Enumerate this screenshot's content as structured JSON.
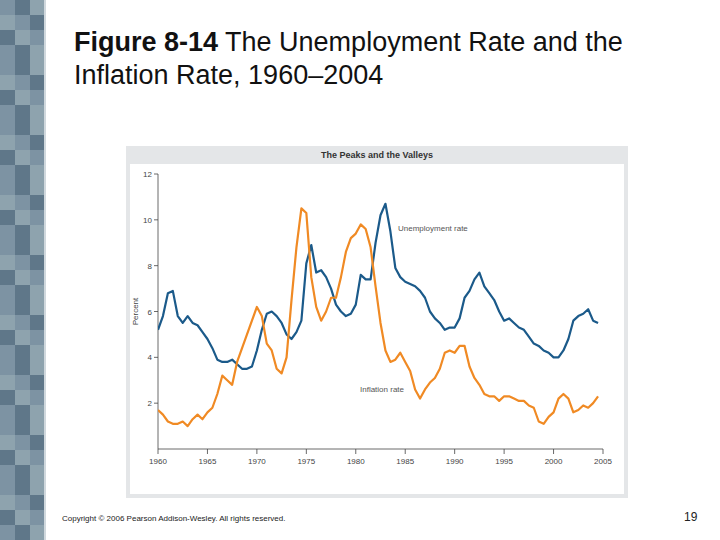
{
  "slide": {
    "figure_label": "Figure 8-14",
    "title": "The Unemployment Rate and the Inflation Rate, 1960–2004",
    "footer": "Copyright © 2006 Pearson Addison-Wesley. All rights reserved.",
    "page": "19"
  },
  "chart_data": {
    "type": "line",
    "title": "The Peaks and the Valleys",
    "ylabel": "Percent",
    "x": [
      1960,
      1960.5,
      1961,
      1961.5,
      1962,
      1962.5,
      1963,
      1963.5,
      1964,
      1964.5,
      1965,
      1965.5,
      1966,
      1966.5,
      1967,
      1967.5,
      1968,
      1968.5,
      1969,
      1969.5,
      1970,
      1970.5,
      1971,
      1971.5,
      1972,
      1972.5,
      1973,
      1973.5,
      1974,
      1974.5,
      1975,
      1975.5,
      1976,
      1976.5,
      1977,
      1977.5,
      1978,
      1978.5,
      1979,
      1979.5,
      1980,
      1980.5,
      1981,
      1981.5,
      1982,
      1982.5,
      1983,
      1983.5,
      1984,
      1984.5,
      1985,
      1985.5,
      1986,
      1986.5,
      1987,
      1987.5,
      1988,
      1988.5,
      1989,
      1989.5,
      1990,
      1990.5,
      1991,
      1991.5,
      1992,
      1992.5,
      1993,
      1993.5,
      1994,
      1994.5,
      1995,
      1995.5,
      1996,
      1996.5,
      1997,
      1997.5,
      1998,
      1998.5,
      1999,
      1999.5,
      2000,
      2000.5,
      2001,
      2001.5,
      2002,
      2002.5,
      2003,
      2003.5,
      2004,
      2004.5
    ],
    "series": [
      {
        "name": "Unemployment rate",
        "color": "#1b5a8a",
        "values": [
          5.2,
          5.8,
          6.8,
          6.9,
          5.8,
          5.5,
          5.8,
          5.5,
          5.4,
          5.1,
          4.8,
          4.4,
          3.9,
          3.8,
          3.8,
          3.9,
          3.7,
          3.5,
          3.5,
          3.6,
          4.3,
          5.2,
          5.9,
          6.0,
          5.8,
          5.5,
          5.0,
          4.8,
          5.1,
          5.6,
          8.1,
          8.9,
          7.7,
          7.8,
          7.5,
          7.0,
          6.3,
          6.0,
          5.8,
          5.9,
          6.3,
          7.6,
          7.4,
          7.4,
          9.0,
          10.2,
          10.7,
          9.5,
          7.9,
          7.5,
          7.3,
          7.2,
          7.1,
          6.9,
          6.6,
          6.0,
          5.7,
          5.5,
          5.2,
          5.3,
          5.3,
          5.7,
          6.6,
          6.9,
          7.4,
          7.7,
          7.1,
          6.8,
          6.5,
          6.0,
          5.6,
          5.7,
          5.5,
          5.3,
          5.2,
          4.9,
          4.6,
          4.5,
          4.3,
          4.2,
          4.0,
          4.0,
          4.3,
          4.8,
          5.6,
          5.8,
          5.9,
          6.1,
          5.6,
          5.5
        ]
      },
      {
        "name": "Inflation rate",
        "color": "#f08a24",
        "values": [
          1.7,
          1.5,
          1.2,
          1.1,
          1.1,
          1.2,
          1.0,
          1.3,
          1.5,
          1.3,
          1.6,
          1.8,
          2.4,
          3.2,
          3.0,
          2.8,
          3.8,
          4.4,
          5.0,
          5.6,
          6.2,
          5.8,
          4.6,
          4.3,
          3.5,
          3.3,
          4.0,
          6.5,
          8.8,
          10.5,
          10.3,
          7.5,
          6.2,
          5.6,
          6.0,
          6.6,
          6.6,
          7.5,
          8.6,
          9.2,
          9.4,
          9.8,
          9.6,
          8.8,
          7.1,
          5.5,
          4.3,
          3.8,
          3.9,
          4.2,
          3.8,
          3.4,
          2.6,
          2.2,
          2.6,
          2.9,
          3.1,
          3.5,
          4.2,
          4.3,
          4.2,
          4.5,
          4.5,
          3.6,
          3.1,
          2.8,
          2.4,
          2.3,
          2.3,
          2.1,
          2.3,
          2.3,
          2.2,
          2.1,
          2.1,
          1.9,
          1.8,
          1.2,
          1.1,
          1.4,
          1.6,
          2.2,
          2.4,
          2.2,
          1.6,
          1.7,
          1.9,
          1.8,
          2.0,
          2.3
        ]
      }
    ],
    "xlim": [
      1960,
      2005
    ],
    "xticks": [
      1960,
      1965,
      1970,
      1975,
      1980,
      1985,
      1990,
      1995,
      2000,
      2005
    ],
    "ylim": [
      0,
      12
    ],
    "yticks": [
      2,
      4,
      6,
      8,
      10,
      12
    ],
    "grid": false
  }
}
